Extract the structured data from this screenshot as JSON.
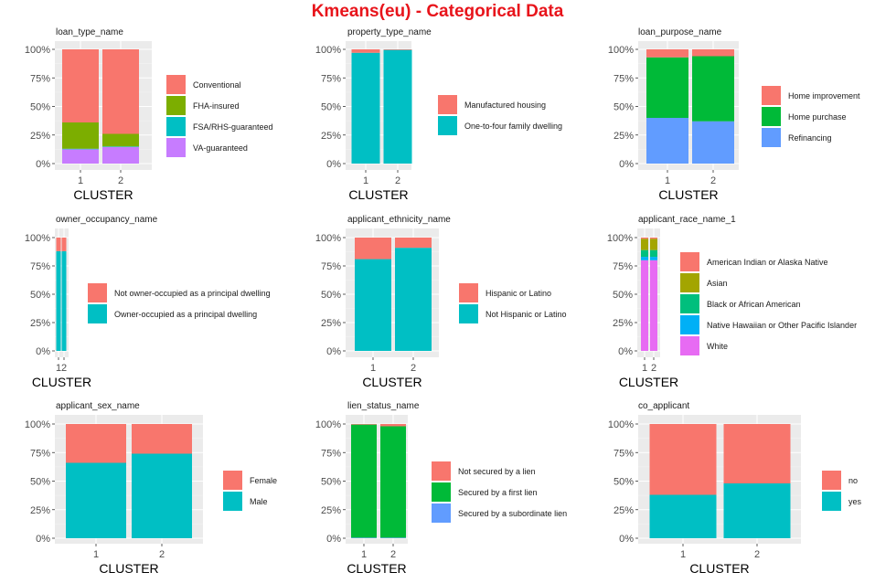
{
  "title": "Kmeans(eu) - Categorical Data",
  "chart_data": [
    {
      "type": "bar",
      "title": "loan_type_name",
      "xlabel": "CLUSTER",
      "categories": [
        "1",
        "2"
      ],
      "yticks": [
        "0%",
        "25%",
        "50%",
        "75%",
        "100%"
      ],
      "series": [
        {
          "name": "Conventional",
          "color": "#f8766d",
          "values": [
            0.64,
            0.74
          ]
        },
        {
          "name": "FHA-insured",
          "color": "#7cae00",
          "values": [
            0.23,
            0.11
          ]
        },
        {
          "name": "FSA/RHS-guaranteed",
          "color": "#00bfc4",
          "values": [
            0.005,
            0.005
          ]
        },
        {
          "name": "VA-guaranteed",
          "color": "#c77cff",
          "values": [
            0.125,
            0.145
          ]
        }
      ]
    },
    {
      "type": "bar",
      "title": "property_type_name",
      "xlabel": "CLUSTER",
      "categories": [
        "1",
        "2"
      ],
      "yticks": [
        "0%",
        "25%",
        "50%",
        "75%",
        "100%"
      ],
      "series": [
        {
          "name": "Manufactured housing",
          "color": "#f8766d",
          "values": [
            0.03,
            0.005
          ]
        },
        {
          "name": "One-to-four family dwelling",
          "color": "#00bfc4",
          "values": [
            0.97,
            0.995
          ]
        }
      ]
    },
    {
      "type": "bar",
      "title": "loan_purpose_name",
      "xlabel": "CLUSTER",
      "categories": [
        "1",
        "2"
      ],
      "yticks": [
        "0%",
        "25%",
        "50%",
        "75%",
        "100%"
      ],
      "series": [
        {
          "name": "Home improvement",
          "color": "#f8766d",
          "values": [
            0.07,
            0.06
          ]
        },
        {
          "name": "Home purchase",
          "color": "#00ba38",
          "values": [
            0.53,
            0.57
          ]
        },
        {
          "name": "Refinancing",
          "color": "#619cff",
          "values": [
            0.4,
            0.37
          ]
        }
      ]
    },
    {
      "type": "bar",
      "title": "owner_occupancy_name",
      "xlabel": "CLUSTER",
      "categories": [
        "1",
        "2"
      ],
      "yticks": [
        "0%",
        "25%",
        "50%",
        "75%",
        "100%"
      ],
      "series": [
        {
          "name": "Not owner-occupied as a principal dwelling",
          "color": "#f8766d",
          "values": [
            0.12,
            0.12
          ]
        },
        {
          "name": "Owner-occupied as a principal dwelling",
          "color": "#00bfc4",
          "values": [
            0.88,
            0.88
          ]
        }
      ]
    },
    {
      "type": "bar",
      "title": "applicant_ethnicity_name",
      "xlabel": "CLUSTER",
      "categories": [
        "1",
        "2"
      ],
      "yticks": [
        "0%",
        "25%",
        "50%",
        "75%",
        "100%"
      ],
      "series": [
        {
          "name": "Hispanic or Latino",
          "color": "#f8766d",
          "values": [
            0.19,
            0.09
          ]
        },
        {
          "name": "Not Hispanic or Latino",
          "color": "#00bfc4",
          "values": [
            0.81,
            0.91
          ]
        }
      ]
    },
    {
      "type": "bar",
      "title": "applicant_race_name_1",
      "xlabel": "CLUSTER",
      "categories": [
        "1",
        "2"
      ],
      "yticks": [
        "0%",
        "25%",
        "50%",
        "75%",
        "100%"
      ],
      "series": [
        {
          "name": "American Indian or Alaska Native",
          "color": "#f8766d",
          "values": [
            0.01,
            0.01
          ]
        },
        {
          "name": "Asian",
          "color": "#a3a500",
          "values": [
            0.1,
            0.1
          ]
        },
        {
          "name": "Black or African American",
          "color": "#00bf7d",
          "values": [
            0.06,
            0.06
          ]
        },
        {
          "name": "Native Hawaiian or Other Pacific Islander",
          "color": "#00b0f6",
          "values": [
            0.03,
            0.03
          ]
        },
        {
          "name": "White",
          "color": "#e76bf3",
          "values": [
            0.8,
            0.8
          ]
        }
      ]
    },
    {
      "type": "bar",
      "title": "applicant_sex_name",
      "xlabel": "CLUSTER",
      "categories": [
        "1",
        "2"
      ],
      "yticks": [
        "0%",
        "25%",
        "50%",
        "75%",
        "100%"
      ],
      "series": [
        {
          "name": "Female",
          "color": "#f8766d",
          "values": [
            0.34,
            0.26
          ]
        },
        {
          "name": "Male",
          "color": "#00bfc4",
          "values": [
            0.66,
            0.74
          ]
        }
      ]
    },
    {
      "type": "bar",
      "title": "lien_status_name",
      "xlabel": "CLUSTER",
      "categories": [
        "1",
        "2"
      ],
      "yticks": [
        "0%",
        "25%",
        "50%",
        "75%",
        "100%"
      ],
      "series": [
        {
          "name": "Not secured by a lien",
          "color": "#f8766d",
          "values": [
            0.005,
            0.02
          ]
        },
        {
          "name": "Secured by a first lien",
          "color": "#00ba38",
          "values": [
            0.99,
            0.975
          ]
        },
        {
          "name": "Secured by a subordinate lien",
          "color": "#619cff",
          "values": [
            0.005,
            0.005
          ]
        }
      ]
    },
    {
      "type": "bar",
      "title": "co_applicant",
      "xlabel": "CLUSTER",
      "categories": [
        "1",
        "2"
      ],
      "yticks": [
        "0%",
        "25%",
        "50%",
        "75%",
        "100%"
      ],
      "series": [
        {
          "name": "no",
          "color": "#f8766d",
          "values": [
            0.62,
            0.52
          ]
        },
        {
          "name": "yes",
          "color": "#00bfc4",
          "values": [
            0.38,
            0.48
          ]
        }
      ]
    }
  ]
}
